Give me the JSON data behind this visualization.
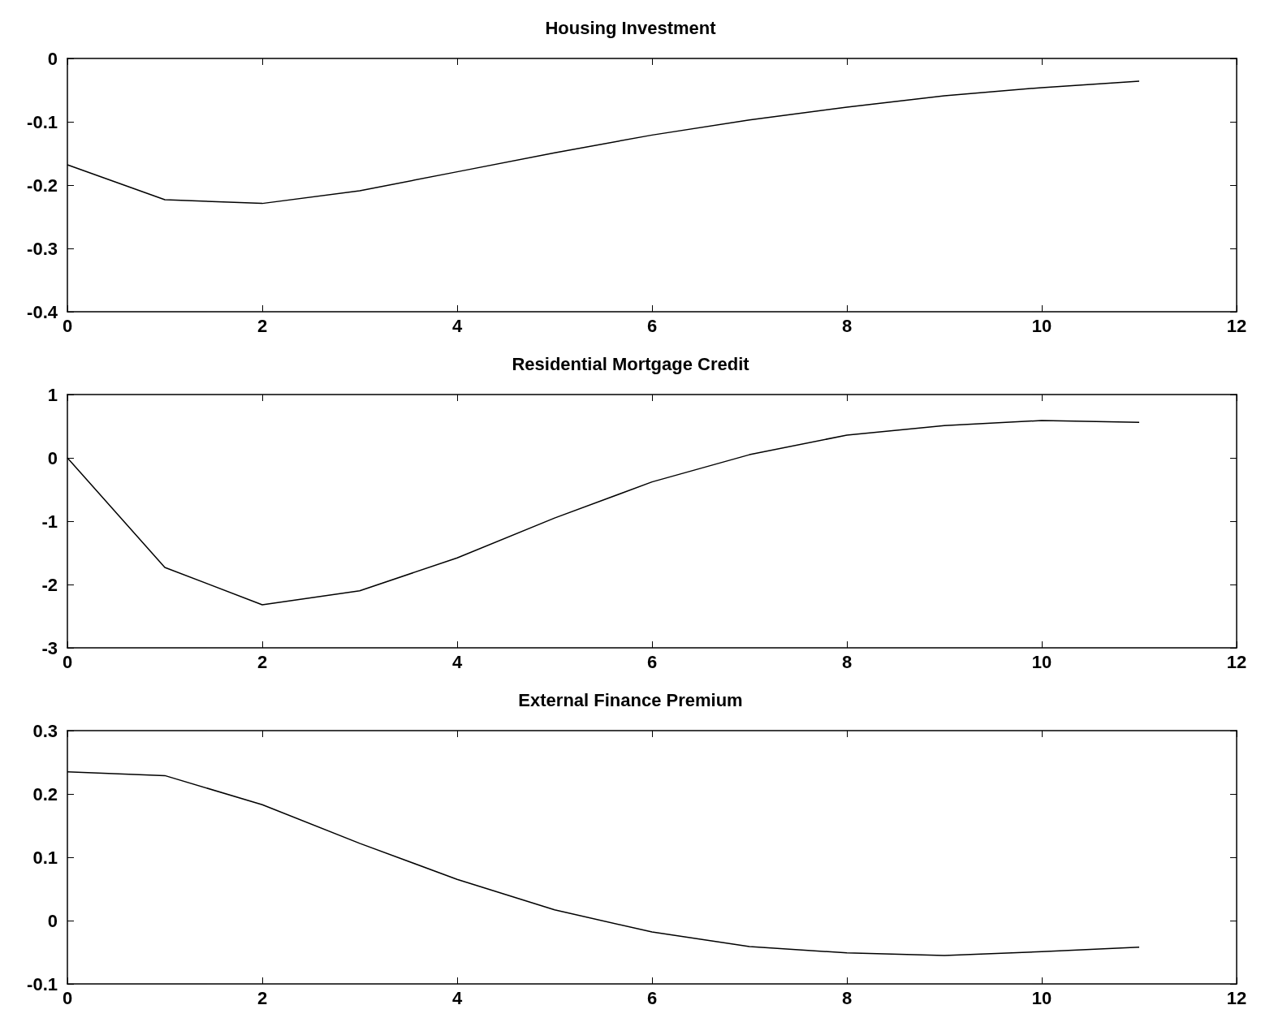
{
  "chart_data": [
    {
      "type": "line",
      "title": "Housing Investment",
      "x": [
        0,
        1,
        2,
        3,
        4,
        5,
        6,
        7,
        8,
        9,
        10,
        11
      ],
      "series": [
        {
          "color": "#000000",
          "values": [
            -0.168,
            -0.223,
            -0.229,
            -0.209,
            -0.179,
            -0.149,
            -0.121,
            -0.097,
            -0.077,
            -0.059,
            -0.046,
            -0.036
          ]
        }
      ],
      "xlim": [
        0,
        12
      ],
      "xticks": [
        0,
        2,
        4,
        6,
        8,
        10,
        12
      ],
      "ylim": [
        -0.4,
        0
      ],
      "yticks": [
        -0.4,
        -0.3,
        -0.2,
        -0.1,
        0
      ],
      "grid": false,
      "marker": "none",
      "line_style": "solid"
    },
    {
      "type": "line",
      "title": "Residential Mortgage Credit",
      "x": [
        0,
        1,
        2,
        3,
        4,
        5,
        6,
        7,
        8,
        9,
        10,
        11
      ],
      "series": [
        {
          "color": "#000000",
          "values": [
            0,
            -1.73,
            -2.32,
            -2.1,
            -1.58,
            -0.95,
            -0.38,
            0.05,
            0.36,
            0.51,
            0.59,
            0.56
          ]
        }
      ],
      "xlim": [
        0,
        12
      ],
      "xticks": [
        0,
        2,
        4,
        6,
        8,
        10,
        12
      ],
      "ylim": [
        -3,
        1
      ],
      "yticks": [
        -3,
        -2,
        -1,
        0,
        1
      ],
      "grid": false,
      "marker": "none",
      "line_style": "solid"
    },
    {
      "type": "line",
      "title": "External Finance Premium",
      "x": [
        0,
        1,
        2,
        3,
        4,
        5,
        6,
        7,
        8,
        9,
        10,
        11
      ],
      "series": [
        {
          "color": "#000000",
          "values": [
            0.235,
            0.229,
            0.183,
            0.122,
            0.065,
            0.017,
            -0.018,
            -0.041,
            -0.051,
            -0.055,
            -0.049,
            -0.042
          ]
        }
      ],
      "xlim": [
        0,
        12
      ],
      "xticks": [
        0,
        2,
        4,
        6,
        8,
        10,
        12
      ],
      "ylim": [
        -0.1,
        0.3
      ],
      "yticks": [
        -0.1,
        0,
        0.1,
        0.2,
        0.3
      ],
      "grid": false,
      "marker": "none",
      "line_style": "solid"
    }
  ]
}
